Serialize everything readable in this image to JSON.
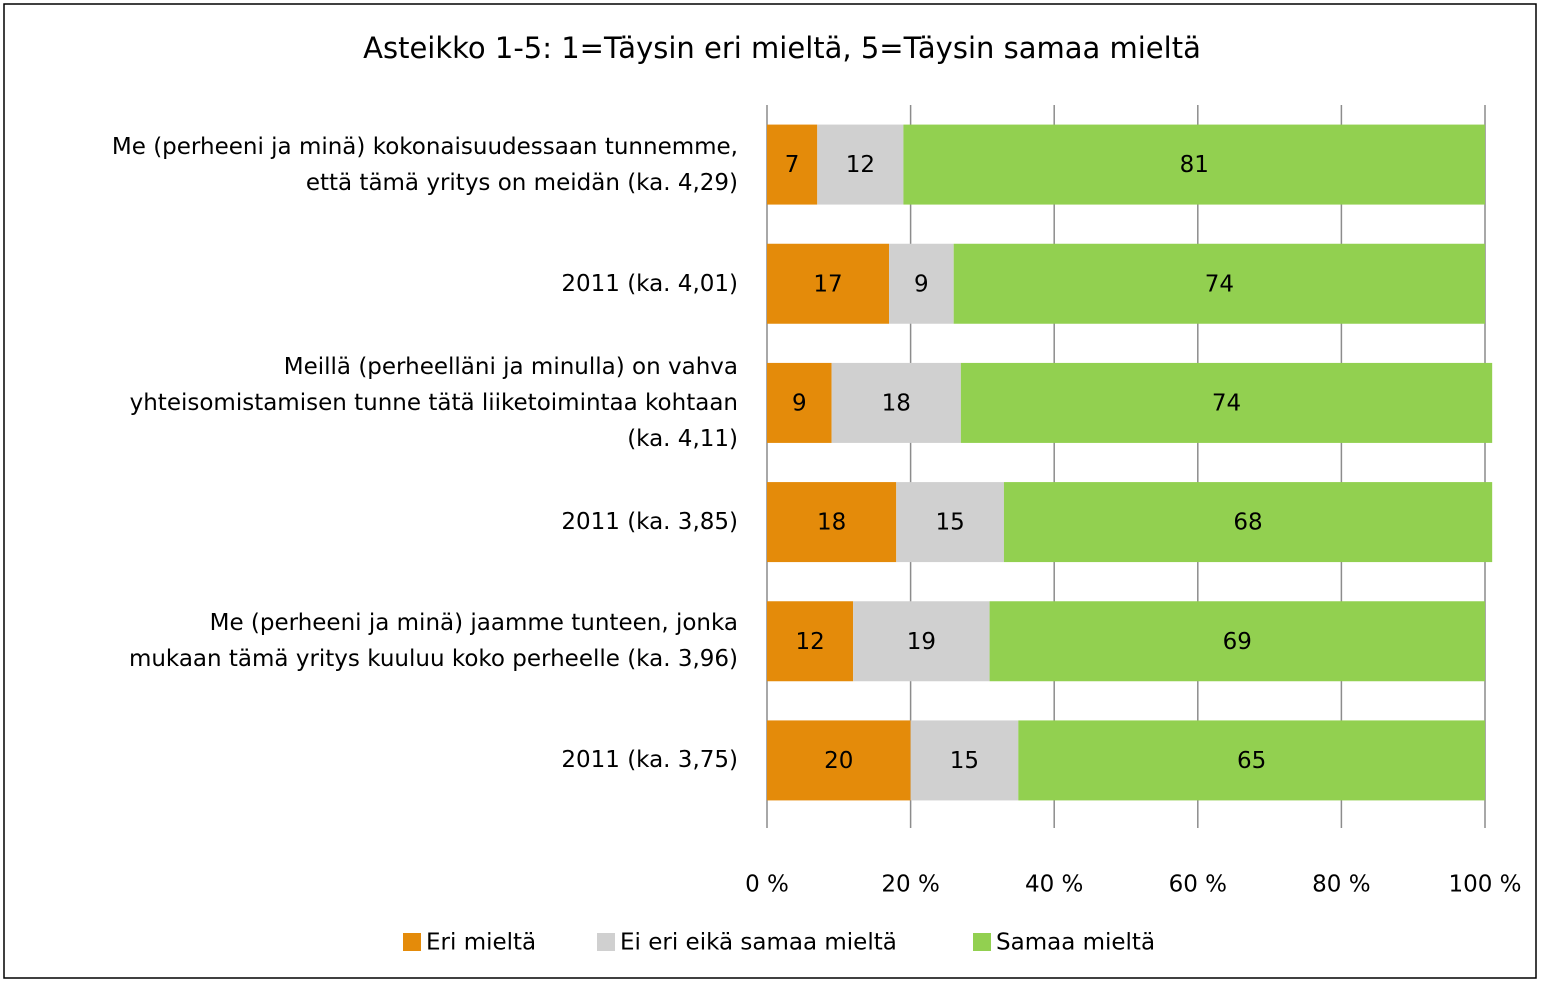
{
  "chart_data": {
    "type": "stacked-barh",
    "title": "Asteikko 1-5: 1=Täysin eri mieltä, 5=Täysin samaa mieltä",
    "categories": [
      "Me (perheeni ja minä) kokonaisuudessaan tunnemme,\nettä tämä yritys on meidän (ka. 4,29)",
      "2011 (ka. 4,01)",
      "Meillä (perheelläni ja minulla) on vahva\nyhteisomistamisen tunne tätä liiketoimintaa kohtaan\n(ka. 4,11)",
      "2011 (ka. 3,85)",
      "Me (perheeni ja minä) jaamme tunteen, jonka\nmukaan tämä yritys kuuluu koko perheelle (ka. 3,96)",
      "2011 (ka. 3,75)"
    ],
    "series": [
      {
        "name": "Eri mieltä",
        "color": "#e48b0a",
        "values": [
          7,
          17,
          9,
          18,
          12,
          20
        ]
      },
      {
        "name": "Ei eri eikä samaa mieltä",
        "color": "#d0d0d0",
        "values": [
          12,
          9,
          18,
          15,
          19,
          15
        ]
      },
      {
        "name": "Samaa mieltä",
        "color": "#92d050",
        "values": [
          81,
          74,
          74,
          68,
          69,
          65
        ]
      }
    ],
    "xlim": [
      0,
      100
    ],
    "xticks": [
      {
        "value": 0,
        "label": "0 %"
      },
      {
        "value": 20,
        "label": "20 %"
      },
      {
        "value": 40,
        "label": "40 %"
      },
      {
        "value": 60,
        "label": "60 %"
      },
      {
        "value": 80,
        "label": "80 %"
      },
      {
        "value": 100,
        "label": "100 %"
      }
    ],
    "grid": true,
    "legend": "bottom"
  }
}
